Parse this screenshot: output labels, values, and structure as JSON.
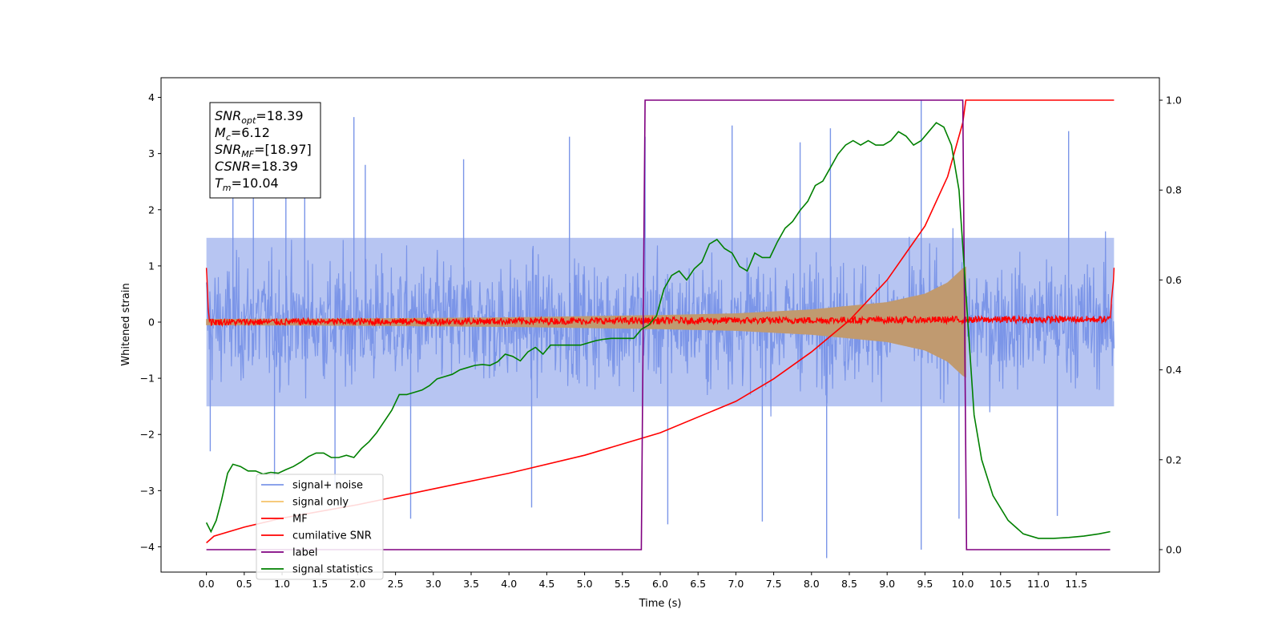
{
  "chart_data": {
    "type": "line",
    "xlabel": "Time (s)",
    "ylabel": "Whitened strain",
    "xlim": [
      -0.6,
      12.6
    ],
    "ylim_left": [
      -4.45,
      4.35
    ],
    "ylim_right": [
      -0.05,
      1.05
    ],
    "x_ticks": [
      0.0,
      0.5,
      1.0,
      1.5,
      2.0,
      2.5,
      3.0,
      3.5,
      4.0,
      4.5,
      5.0,
      5.5,
      6.0,
      6.5,
      7.0,
      7.5,
      8.0,
      8.5,
      9.0,
      9.5,
      10.0,
      10.5,
      11.0,
      11.5
    ],
    "x_tick_labels": [
      "0.0",
      "0.5",
      "1.0",
      "1.5",
      "2.0",
      "2.5",
      "3.0",
      "3.5",
      "4.0",
      "4.5",
      "5.0",
      "5.5",
      "6.0",
      "6.5",
      "7.0",
      "7.5",
      "8.0",
      "8.5",
      "9.0",
      "9.5",
      "10.0",
      "10.5",
      "11.0",
      "11.5"
    ],
    "y_ticks_left": [
      -4,
      -3,
      -2,
      -1,
      0,
      1,
      2,
      3,
      4
    ],
    "y_tick_labels_left": [
      "−4",
      "−3",
      "−2",
      "−1",
      "0",
      "1",
      "2",
      "3",
      "4"
    ],
    "y_ticks_right": [
      0.0,
      0.2,
      0.4,
      0.6,
      0.8,
      1.0
    ],
    "y_tick_labels_right": [
      "0.0",
      "0.2",
      "0.4",
      "0.6",
      "0.8",
      "1.0"
    ],
    "grid": false,
    "legend_position": "lower-left",
    "annotation": {
      "lines": [
        {
          "base": "SNR",
          "sub": "opt",
          "value": "=18.39"
        },
        {
          "base": "M",
          "sub": "c",
          "value": "=6.12"
        },
        {
          "base": "SNR",
          "sub": "MF",
          "value": "=[18.97]"
        },
        {
          "base": "CSNR",
          "sub": "",
          "value": "=18.39"
        },
        {
          "base": "T",
          "sub": "m",
          "value": "=10.04"
        }
      ]
    },
    "series": [
      {
        "name": "signal+ noise",
        "axis": "left",
        "color": "#7b96e8",
        "style": "noise",
        "x_range": [
          0.0,
          12.0
        ],
        "band": {
          "low": -1.5,
          "high": 1.5
        },
        "peaks": [
          {
            "x": 0.35,
            "y": 3.1
          },
          {
            "x": 0.62,
            "y": 3.2
          },
          {
            "x": 1.05,
            "y": 2.9
          },
          {
            "x": 1.3,
            "y": 3.5
          },
          {
            "x": 1.95,
            "y": 3.65
          },
          {
            "x": 2.1,
            "y": 2.8
          },
          {
            "x": 3.4,
            "y": 2.9
          },
          {
            "x": 4.8,
            "y": 3.3
          },
          {
            "x": 5.8,
            "y": 3.3
          },
          {
            "x": 6.95,
            "y": 3.5
          },
          {
            "x": 7.85,
            "y": 3.2
          },
          {
            "x": 8.25,
            "y": 3.45
          },
          {
            "x": 9.45,
            "y": 3.95
          },
          {
            "x": 11.4,
            "y": 3.4
          }
        ],
        "troughs": [
          {
            "x": 0.05,
            "y": -2.3
          },
          {
            "x": 0.9,
            "y": -2.8
          },
          {
            "x": 1.7,
            "y": -2.9
          },
          {
            "x": 2.7,
            "y": -3.5
          },
          {
            "x": 4.3,
            "y": -3.3
          },
          {
            "x": 6.1,
            "y": -3.6
          },
          {
            "x": 7.35,
            "y": -3.55
          },
          {
            "x": 8.2,
            "y": -4.2
          },
          {
            "x": 9.45,
            "y": -4.05
          },
          {
            "x": 9.95,
            "y": -3.5
          },
          {
            "x": 11.25,
            "y": -3.45
          }
        ]
      },
      {
        "name": "signal only",
        "axis": "left",
        "color": "#f5c36a",
        "style": "chirp",
        "x_range": [
          0.0,
          10.04
        ],
        "envelope_points": [
          [
            0.0,
            0.05
          ],
          [
            2.0,
            0.06
          ],
          [
            4.0,
            0.08
          ],
          [
            6.0,
            0.12
          ],
          [
            7.0,
            0.15
          ],
          [
            8.0,
            0.22
          ],
          [
            9.0,
            0.35
          ],
          [
            9.5,
            0.5
          ],
          [
            9.8,
            0.7
          ],
          [
            10.0,
            0.95
          ],
          [
            10.04,
            0.98
          ]
        ]
      },
      {
        "name": "MF",
        "axis": "left",
        "color": "#ff0000",
        "style": "mf",
        "x_range": [
          0.0,
          12.0
        ],
        "points": [
          [
            0.0,
            1.0
          ],
          [
            0.03,
            0.1
          ],
          [
            0.06,
            0.0
          ],
          [
            11.95,
            0.05
          ],
          [
            12.0,
            0.92
          ]
        ],
        "noise_amplitude": 0.06
      },
      {
        "name": "cumilative SNR",
        "axis": "right",
        "color": "#ff0000",
        "points": [
          [
            0.0,
            0.015
          ],
          [
            0.1,
            0.03
          ],
          [
            0.5,
            0.05
          ],
          [
            1.0,
            0.07
          ],
          [
            2.0,
            0.1
          ],
          [
            3.0,
            0.135
          ],
          [
            4.0,
            0.17
          ],
          [
            5.0,
            0.21
          ],
          [
            6.0,
            0.26
          ],
          [
            7.0,
            0.33
          ],
          [
            7.5,
            0.38
          ],
          [
            8.0,
            0.44
          ],
          [
            8.5,
            0.51
          ],
          [
            9.0,
            0.6
          ],
          [
            9.5,
            0.72
          ],
          [
            9.8,
            0.83
          ],
          [
            10.0,
            0.95
          ],
          [
            10.04,
            1.0
          ],
          [
            12.0,
            1.0
          ]
        ]
      },
      {
        "name": "label",
        "axis": "right",
        "color": "#800080",
        "points": [
          [
            0.0,
            0.0
          ],
          [
            5.75,
            0.0
          ],
          [
            5.8,
            1.0
          ],
          [
            10.0,
            1.0
          ],
          [
            10.05,
            0.0
          ],
          [
            11.95,
            0.0
          ]
        ]
      },
      {
        "name": "signal statistics",
        "axis": "right",
        "color": "#008000",
        "points": [
          [
            0.0,
            0.06
          ],
          [
            0.06,
            0.04
          ],
          [
            0.13,
            0.065
          ],
          [
            0.2,
            0.11
          ],
          [
            0.28,
            0.17
          ],
          [
            0.35,
            0.19
          ],
          [
            0.45,
            0.185
          ],
          [
            0.55,
            0.175
          ],
          [
            0.65,
            0.175
          ],
          [
            0.75,
            0.168
          ],
          [
            0.85,
            0.172
          ],
          [
            0.95,
            0.17
          ],
          [
            1.05,
            0.178
          ],
          [
            1.15,
            0.185
          ],
          [
            1.25,
            0.195
          ],
          [
            1.35,
            0.207
          ],
          [
            1.45,
            0.215
          ],
          [
            1.55,
            0.215
          ],
          [
            1.65,
            0.205
          ],
          [
            1.75,
            0.205
          ],
          [
            1.85,
            0.21
          ],
          [
            1.95,
            0.205
          ],
          [
            2.05,
            0.225
          ],
          [
            2.15,
            0.24
          ],
          [
            2.25,
            0.26
          ],
          [
            2.35,
            0.285
          ],
          [
            2.45,
            0.31
          ],
          [
            2.55,
            0.345
          ],
          [
            2.65,
            0.345
          ],
          [
            2.75,
            0.35
          ],
          [
            2.85,
            0.355
          ],
          [
            2.95,
            0.365
          ],
          [
            3.05,
            0.38
          ],
          [
            3.15,
            0.385
          ],
          [
            3.25,
            0.39
          ],
          [
            3.35,
            0.4
          ],
          [
            3.45,
            0.405
          ],
          [
            3.55,
            0.41
          ],
          [
            3.65,
            0.412
          ],
          [
            3.75,
            0.41
          ],
          [
            3.85,
            0.418
          ],
          [
            3.95,
            0.435
          ],
          [
            4.05,
            0.43
          ],
          [
            4.15,
            0.42
          ],
          [
            4.25,
            0.44
          ],
          [
            4.35,
            0.45
          ],
          [
            4.45,
            0.435
          ],
          [
            4.55,
            0.455
          ],
          [
            4.65,
            0.455
          ],
          [
            4.75,
            0.455
          ],
          [
            4.85,
            0.455
          ],
          [
            4.95,
            0.455
          ],
          [
            5.05,
            0.46
          ],
          [
            5.15,
            0.465
          ],
          [
            5.25,
            0.468
          ],
          [
            5.35,
            0.47
          ],
          [
            5.45,
            0.47
          ],
          [
            5.55,
            0.47
          ],
          [
            5.65,
            0.47
          ],
          [
            5.75,
            0.49
          ],
          [
            5.85,
            0.5
          ],
          [
            5.95,
            0.52
          ],
          [
            6.05,
            0.58
          ],
          [
            6.15,
            0.61
          ],
          [
            6.25,
            0.62
          ],
          [
            6.35,
            0.6
          ],
          [
            6.45,
            0.625
          ],
          [
            6.55,
            0.64
          ],
          [
            6.65,
            0.68
          ],
          [
            6.75,
            0.69
          ],
          [
            6.85,
            0.67
          ],
          [
            6.95,
            0.66
          ],
          [
            7.05,
            0.63
          ],
          [
            7.15,
            0.62
          ],
          [
            7.25,
            0.66
          ],
          [
            7.35,
            0.65
          ],
          [
            7.45,
            0.65
          ],
          [
            7.55,
            0.685
          ],
          [
            7.65,
            0.715
          ],
          [
            7.75,
            0.73
          ],
          [
            7.85,
            0.755
          ],
          [
            7.95,
            0.775
          ],
          [
            8.05,
            0.81
          ],
          [
            8.15,
            0.82
          ],
          [
            8.25,
            0.85
          ],
          [
            8.35,
            0.88
          ],
          [
            8.45,
            0.9
          ],
          [
            8.55,
            0.91
          ],
          [
            8.65,
            0.9
          ],
          [
            8.75,
            0.91
          ],
          [
            8.85,
            0.9
          ],
          [
            8.95,
            0.9
          ],
          [
            9.05,
            0.91
          ],
          [
            9.15,
            0.93
          ],
          [
            9.25,
            0.92
          ],
          [
            9.35,
            0.9
          ],
          [
            9.45,
            0.91
          ],
          [
            9.55,
            0.93
          ],
          [
            9.65,
            0.95
          ],
          [
            9.75,
            0.94
          ],
          [
            9.85,
            0.9
          ],
          [
            9.95,
            0.8
          ],
          [
            10.05,
            0.55
          ],
          [
            10.15,
            0.3
          ],
          [
            10.25,
            0.2
          ],
          [
            10.4,
            0.12
          ],
          [
            10.6,
            0.065
          ],
          [
            10.8,
            0.035
          ],
          [
            11.0,
            0.025
          ],
          [
            11.2,
            0.025
          ],
          [
            11.4,
            0.027
          ],
          [
            11.6,
            0.03
          ],
          [
            11.8,
            0.035
          ],
          [
            11.95,
            0.04
          ]
        ]
      }
    ]
  }
}
